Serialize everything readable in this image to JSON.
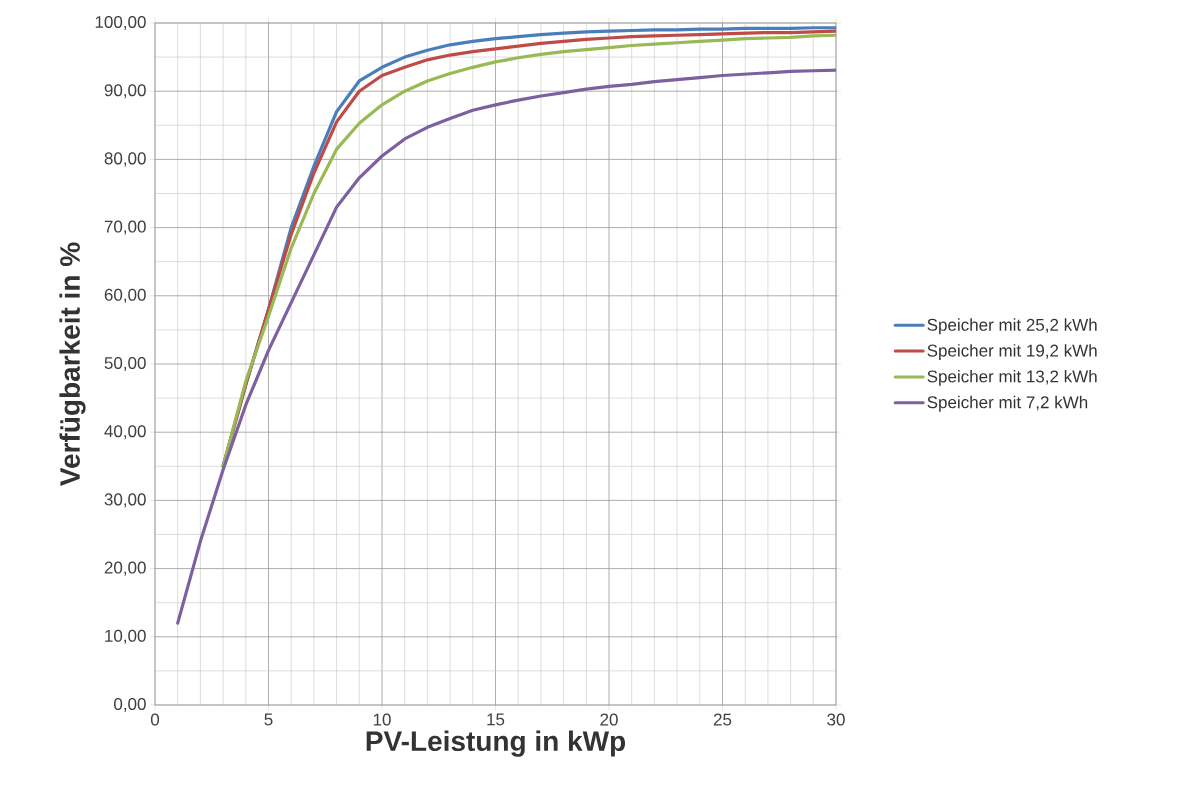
{
  "chart_data": {
    "type": "line",
    "xlabel": "PV-Leistung in kWp",
    "ylabel": "Verfügbarkeit in %",
    "x": [
      1,
      2,
      3,
      4,
      5,
      6,
      7,
      8,
      9,
      10,
      11,
      12,
      13,
      14,
      15,
      16,
      17,
      18,
      19,
      20,
      21,
      22,
      23,
      24,
      25,
      26,
      27,
      28,
      29,
      30
    ],
    "series": [
      {
        "name": "Speicher mit 25,2 kWh",
        "color": "#4a7ebb",
        "values": [
          null,
          null,
          35,
          47,
          58,
          70,
          79,
          87,
          91.5,
          93.5,
          95,
          96,
          96.8,
          97.3,
          97.7,
          98,
          98.3,
          98.5,
          98.7,
          98.8,
          98.9,
          99,
          99,
          99.1,
          99.1,
          99.2,
          99.2,
          99.2,
          99.3,
          99.3
        ]
      },
      {
        "name": "Speicher mit 19,2 kWh",
        "color": "#be4b48",
        "values": [
          null,
          null,
          35,
          47,
          58,
          69,
          78,
          85.5,
          90,
          92.3,
          93.5,
          94.6,
          95.3,
          95.8,
          96.2,
          96.6,
          97,
          97.3,
          97.6,
          97.8,
          98,
          98.1,
          98.2,
          98.3,
          98.4,
          98.5,
          98.6,
          98.6,
          98.7,
          98.8
        ]
      },
      {
        "name": "Speicher mit 13,2 kWh",
        "color": "#98b954",
        "values": [
          null,
          null,
          35,
          47.5,
          57,
          67,
          75,
          81.5,
          85.3,
          88,
          90,
          91.5,
          92.6,
          93.5,
          94.3,
          94.9,
          95.4,
          95.8,
          96.1,
          96.4,
          96.7,
          96.9,
          97.1,
          97.3,
          97.5,
          97.7,
          97.8,
          97.9,
          98.1,
          98.2
        ]
      },
      {
        "name": "Speicher mit 7,2 kWh",
        "color": "#7d60a0",
        "values": [
          12,
          24,
          34.5,
          44,
          52,
          59,
          66,
          73,
          77.3,
          80.5,
          83,
          84.7,
          86,
          87.2,
          88,
          88.7,
          89.3,
          89.8,
          90.3,
          90.7,
          91,
          91.4,
          91.7,
          92,
          92.3,
          92.5,
          92.7,
          92.9,
          93,
          93.1
        ]
      }
    ],
    "xlim": [
      0,
      30
    ],
    "xticks": [
      0,
      5,
      10,
      15,
      20,
      25,
      30
    ],
    "ylim": [
      0,
      100
    ],
    "yticks": [
      {
        "value": 0,
        "label": "0,00"
      },
      {
        "value": 10,
        "label": "10,00"
      },
      {
        "value": 20,
        "label": "20,00"
      },
      {
        "value": 30,
        "label": "30,00"
      },
      {
        "value": 40,
        "label": "40,00"
      },
      {
        "value": 50,
        "label": "50,00"
      },
      {
        "value": 60,
        "label": "60,00"
      },
      {
        "value": 70,
        "label": "70,00"
      },
      {
        "value": 80,
        "label": "80,00"
      },
      {
        "value": 90,
        "label": "90,00"
      },
      {
        "value": 100,
        "label": "100,00"
      }
    ],
    "grid": true,
    "legend": "right",
    "marker": "none",
    "line_style": "solid"
  }
}
